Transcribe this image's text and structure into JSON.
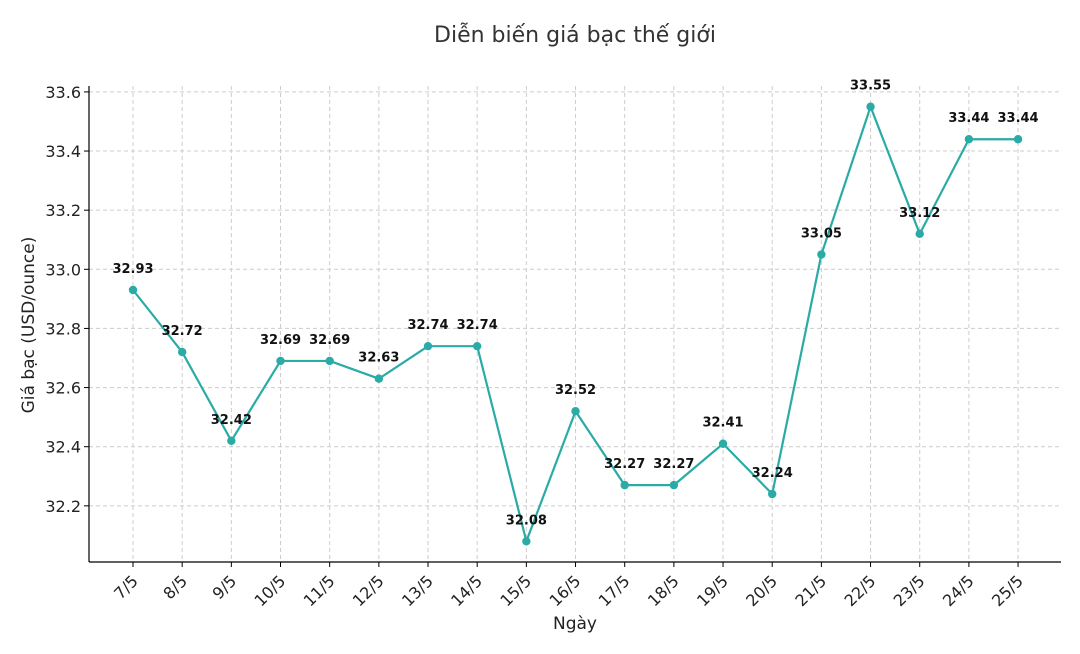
{
  "chart_data": {
    "type": "line",
    "title": "Diễn biến giá bạc thế giới",
    "xlabel": "Ngày",
    "ylabel": "Giá bạc (USD/ounce)",
    "categories": [
      "7/5",
      "8/5",
      "9/5",
      "10/5",
      "11/5",
      "12/5",
      "13/5",
      "14/5",
      "15/5",
      "16/5",
      "17/5",
      "18/5",
      "19/5",
      "20/5",
      "21/5",
      "22/5",
      "23/5",
      "24/5",
      "25/5"
    ],
    "series": [
      {
        "values": [
          32.93,
          32.72,
          32.42,
          32.69,
          32.69,
          32.63,
          32.74,
          32.74,
          32.08,
          32.52,
          32.27,
          32.27,
          32.41,
          32.24,
          33.05,
          33.55,
          33.12,
          33.44,
          33.44
        ]
      }
    ],
    "data_labels": [
      "32.93",
      "32.72",
      "32.42",
      "32.69",
      "32.69",
      "32.63",
      "32.74",
      "32.74",
      "32.08",
      "32.52",
      "32.27",
      "32.27",
      "32.41",
      "32.24",
      "33.05",
      "33.55",
      "33.12",
      "33.44",
      "33.44"
    ],
    "yticks": [
      "32.2",
      "32.4",
      "32.6",
      "32.8",
      "33.0",
      "33.2",
      "33.4",
      "33.6"
    ],
    "ylim": [
      32.01,
      33.62
    ],
    "grid": true,
    "line_color": "#2aaba5"
  }
}
